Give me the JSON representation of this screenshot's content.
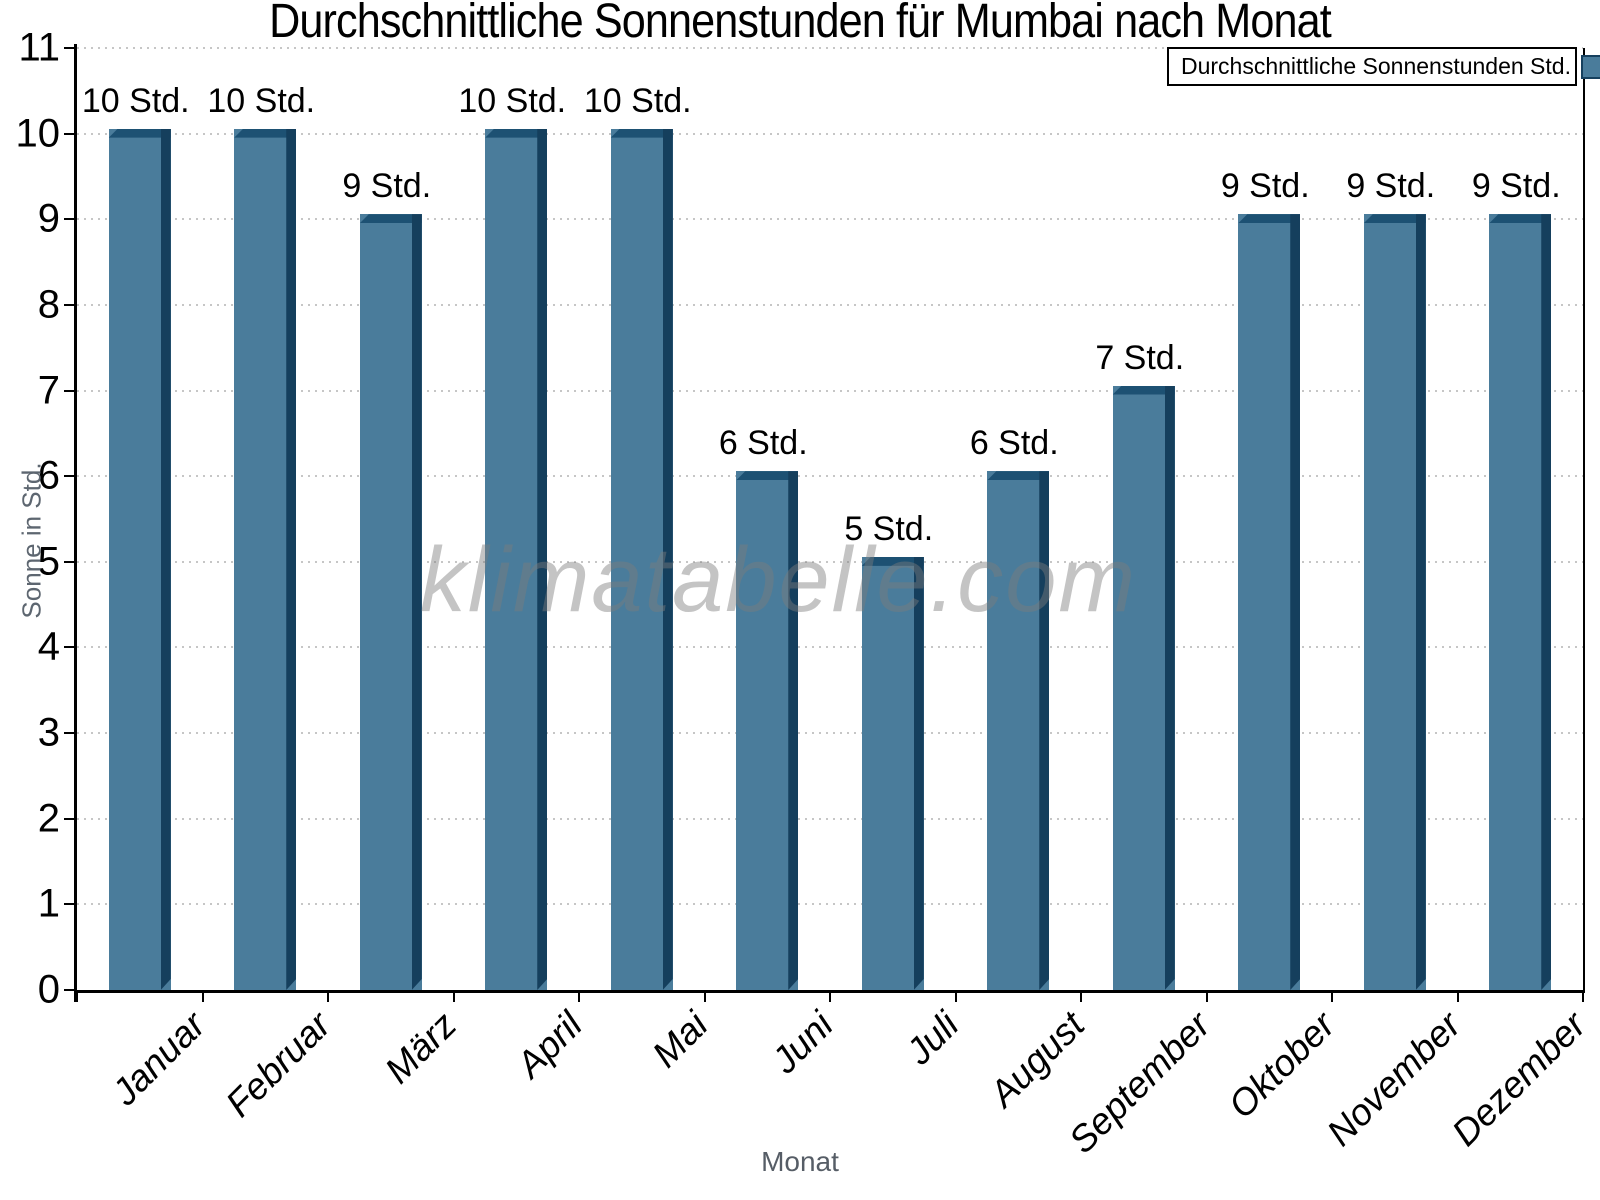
{
  "watermark": "klimatabelle.com",
  "chart_data": {
    "type": "bar",
    "title": "Durchschnittliche Sonnenstunden für Mumbai nach Monat",
    "xlabel": "Monat",
    "ylabel": "Sonne in Std.",
    "legend": "Durchschnittliche Sonnenstunden Std.",
    "legend_position": "top-right",
    "grid": "horizontal-dotted",
    "ylim": [
      0,
      11
    ],
    "ytick_step": 1,
    "categories": [
      "Januar",
      "Februar",
      "März",
      "April",
      "Mai",
      "Juni",
      "Juli",
      "August",
      "September",
      "Oktober",
      "November",
      "Dezember"
    ],
    "values": [
      10,
      10,
      9,
      10,
      10,
      6,
      5,
      6,
      7,
      9,
      9,
      9
    ],
    "bar_labels": [
      "10 Std.",
      "10 Std.",
      "9 Std.",
      "10 Std.",
      "10 Std.",
      "6 Std.",
      "5 Std.",
      "6 Std.",
      "7 Std.",
      "9 Std.",
      "9 Std.",
      "9 Std."
    ],
    "unit": "Std.",
    "colors": {
      "bar_fill": "#4A7C9B",
      "bar_top_edge": "#1D5173",
      "bar_right_edge": "#153F5D",
      "grid": "#c6c6c6",
      "axis": "#000000",
      "axis_title": "#5d6670",
      "value_label": "#000000",
      "watermark": "#bdbdbd"
    }
  }
}
